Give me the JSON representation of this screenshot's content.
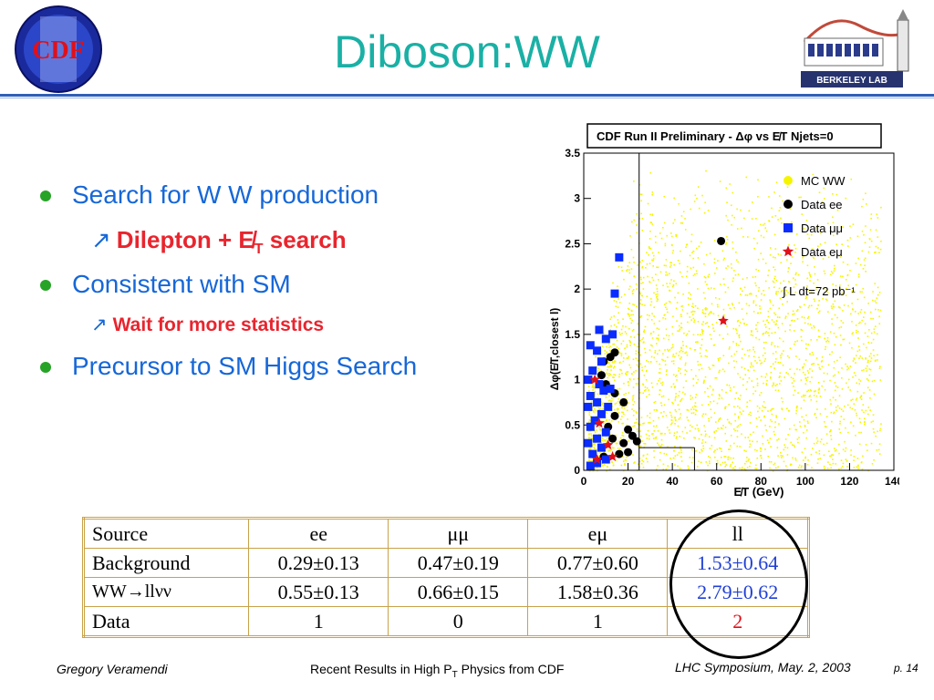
{
  "slide": {
    "title": "Diboson:WW",
    "logo_left_text": "CDF",
    "logo_right_text": "BERKELEY LAB"
  },
  "bullets": [
    {
      "text": "Search for W W production",
      "sub": [
        "Dilepton + E̸",
        "T",
        " search"
      ]
    },
    {
      "text": "Consistent with SM",
      "sub": [
        "Wait for more statistics"
      ]
    },
    {
      "text": "Precursor to SM Higgs Search"
    }
  ],
  "chart_data": {
    "type": "scatter",
    "title": "CDF Run II Preliminary - Δφ vs E̸T Njets=0",
    "xlabel": "E̸T (GeV)",
    "ylabel": "Δφ(E̸T,closest l)",
    "xlim": [
      0,
      140
    ],
    "ylim": [
      0,
      3.5
    ],
    "x_ticks": [
      "0",
      "20",
      "40",
      "60",
      "80",
      "100",
      "120",
      "140"
    ],
    "y_ticks": [
      "0",
      "0.5",
      "1",
      "1.5",
      "2",
      "2.5",
      "3",
      "3.5"
    ],
    "legend_position": "top-right",
    "legend": [
      {
        "label": "MC WW",
        "marker": "circle",
        "color": "#f5f500"
      },
      {
        "label": "Data ee",
        "marker": "circle",
        "color": "#000000"
      },
      {
        "label": "Data μμ",
        "marker": "square",
        "color": "#0a2cff"
      },
      {
        "label": "Data eμ",
        "marker": "star",
        "color": "#e0101a"
      }
    ],
    "annotation": "∫ L dt=72 pb⁻¹",
    "cut_lines": [
      {
        "x": [
          25,
          25
        ],
        "y": [
          0,
          3.5
        ]
      },
      {
        "x": [
          25,
          50
        ],
        "y": [
          0.25,
          0.25
        ]
      },
      {
        "x": [
          50,
          50
        ],
        "y": [
          0,
          0.25
        ]
      }
    ],
    "series": [
      {
        "name": "Data ee",
        "marker": "circle",
        "color": "#000000",
        "points": [
          [
            62,
            2.53
          ],
          [
            14,
            1.3
          ],
          [
            12,
            1.25
          ],
          [
            9,
            1.2
          ],
          [
            14,
            0.85
          ],
          [
            18,
            0.75
          ],
          [
            14,
            0.6
          ],
          [
            20,
            0.45
          ],
          [
            22,
            0.38
          ],
          [
            24,
            0.32
          ],
          [
            20,
            0.2
          ],
          [
            16,
            0.18
          ],
          [
            8,
            1.05
          ],
          [
            10,
            0.95
          ],
          [
            11,
            0.48
          ],
          [
            13,
            0.35
          ],
          [
            18,
            0.3
          ],
          [
            9,
            0.15
          ]
        ]
      },
      {
        "name": "Data μμ",
        "marker": "square",
        "color": "#0a2cff",
        "points": [
          [
            16,
            2.35
          ],
          [
            14,
            1.95
          ],
          [
            13,
            1.5
          ],
          [
            10,
            1.45
          ],
          [
            3,
            1.38
          ],
          [
            6,
            1.32
          ],
          [
            8,
            1.2
          ],
          [
            4,
            1.1
          ],
          [
            2,
            1.0
          ],
          [
            7,
            0.95
          ],
          [
            9,
            0.88
          ],
          [
            3,
            0.82
          ],
          [
            6,
            0.75
          ],
          [
            2,
            0.7
          ],
          [
            8,
            0.62
          ],
          [
            5,
            0.55
          ],
          [
            3,
            0.48
          ],
          [
            10,
            0.42
          ],
          [
            6,
            0.35
          ],
          [
            2,
            0.3
          ],
          [
            8,
            0.25
          ],
          [
            4,
            0.18
          ],
          [
            10,
            0.12
          ],
          [
            6,
            0.08
          ],
          [
            3,
            0.05
          ],
          [
            12,
            0.9
          ],
          [
            11,
            0.7
          ],
          [
            7,
            1.55
          ]
        ]
      },
      {
        "name": "Data eμ",
        "marker": "star",
        "color": "#e0101a",
        "points": [
          [
            63,
            1.65
          ],
          [
            5,
            1.0
          ],
          [
            7,
            0.52
          ],
          [
            11,
            0.28
          ],
          [
            6,
            0.12
          ],
          [
            13,
            0.15
          ]
        ]
      }
    ]
  },
  "table": {
    "headers": [
      "Source",
      "ee",
      "μμ",
      "eμ",
      "ll"
    ],
    "rows": [
      [
        "Background",
        "0.29±0.13",
        "0.47±0.19",
        "0.77±0.60",
        "1.53±0.64"
      ],
      [
        "WW→llνν",
        "0.55±0.13",
        "0.66±0.15",
        "1.58±0.36",
        "2.79±0.62"
      ],
      [
        "Data",
        "1",
        "0",
        "1",
        "2"
      ]
    ]
  },
  "footer": {
    "author": "Gregory Veramendi",
    "talk": "Recent Results in High P",
    "talk_sub": "T",
    "talk_end": " Physics from CDF",
    "venue": "LHC Symposium, May. 2, 2003",
    "page": "p. 14"
  },
  "colors": {
    "title": "#1ab0a5",
    "bullet_text": "#1667d8",
    "sub_text": "#e8252e",
    "table_border": "#c8a24a"
  }
}
